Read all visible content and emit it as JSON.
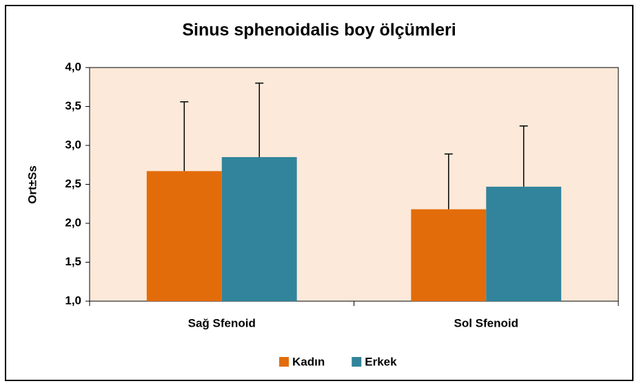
{
  "chart_data": {
    "type": "bar",
    "title": "Sinus sphenoidalis boy ölçümleri",
    "y_label": "Ort±Ss",
    "categories": [
      "Sağ Sfenoid",
      "Sol Sfenoid"
    ],
    "series": [
      {
        "name": "Kadın",
        "color": "#e36c0a",
        "values": [
          2.67,
          2.18
        ],
        "errors": [
          0.89,
          0.71
        ]
      },
      {
        "name": "Erkek",
        "color": "#31849b",
        "values": [
          2.85,
          2.47
        ],
        "errors": [
          0.95,
          0.78
        ]
      }
    ],
    "ylim": [
      1,
      4
    ],
    "yticks": [
      {
        "value": 1,
        "label": "1,0"
      },
      {
        "value": 1.5,
        "label": "1,5"
      },
      {
        "value": 2,
        "label": "2,0"
      },
      {
        "value": 2.5,
        "label": "2,5"
      },
      {
        "value": 3,
        "label": "3,0"
      },
      {
        "value": 3.5,
        "label": "3,5"
      },
      {
        "value": 4,
        "label": "4,0"
      }
    ],
    "plot_background": "#fde9d9",
    "legend": "bottom"
  }
}
